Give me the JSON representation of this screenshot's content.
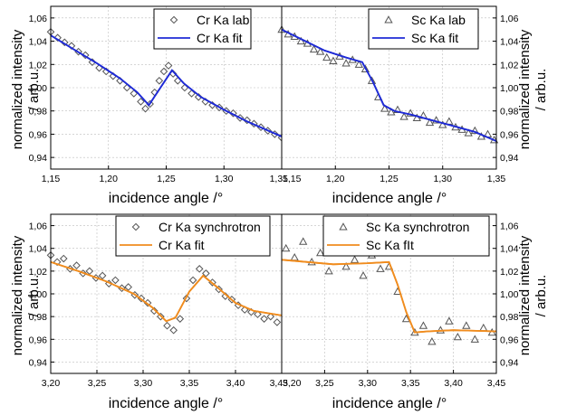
{
  "figure": {
    "ylabel_line1": "normalized intensity",
    "ylabel_line2": "/ arb.u."
  },
  "chart_data": [
    {
      "type": "scatter",
      "title": "",
      "xlabel": "incidence angle /°",
      "ylabel": "normalized intensity / arb.u.",
      "xlim": [
        1.15,
        1.35
      ],
      "ylim": [
        0.93,
        1.07
      ],
      "xticks": [
        "1,15",
        "1,20",
        "1,25",
        "1,30",
        "1,35"
      ],
      "yticks": [
        "0,94",
        "0,96",
        "0,98",
        "1,00",
        "1,02",
        "1,04",
        "1,06"
      ],
      "legend_position": "top-right",
      "grid": true,
      "series": [
        {
          "name": "Cr Ka lab",
          "kind": "markers",
          "marker": "diamond",
          "color": "#555555",
          "x": [
            1.15,
            1.156,
            1.162,
            1.168,
            1.174,
            1.18,
            1.186,
            1.192,
            1.198,
            1.204,
            1.21,
            1.216,
            1.222,
            1.228,
            1.232,
            1.236,
            1.24,
            1.244,
            1.248,
            1.252,
            1.256,
            1.26,
            1.266,
            1.272,
            1.278,
            1.284,
            1.29,
            1.296,
            1.302,
            1.308,
            1.314,
            1.32,
            1.326,
            1.332,
            1.338,
            1.344,
            1.35
          ],
          "y": [
            1.048,
            1.043,
            1.039,
            1.036,
            1.031,
            1.028,
            1.022,
            1.017,
            1.014,
            1.01,
            1.006,
            1.0,
            0.995,
            0.988,
            0.982,
            0.986,
            0.996,
            1.006,
            1.014,
            1.019,
            1.012,
            1.006,
            1.0,
            0.995,
            0.992,
            0.988,
            0.985,
            0.983,
            0.98,
            0.978,
            0.974,
            0.972,
            0.969,
            0.966,
            0.963,
            0.96,
            0.957
          ]
        },
        {
          "name": "Cr Ka fit",
          "kind": "line",
          "color": "#1f2bd6",
          "x": [
            1.15,
            1.17,
            1.19,
            1.21,
            1.225,
            1.235,
            1.245,
            1.255,
            1.265,
            1.28,
            1.3,
            1.32,
            1.35
          ],
          "y": [
            1.045,
            1.033,
            1.021,
            1.008,
            0.996,
            0.985,
            1.0,
            1.015,
            1.004,
            0.992,
            0.981,
            0.971,
            0.958
          ]
        }
      ]
    },
    {
      "type": "scatter",
      "title": "",
      "xlabel": "incidence angle /°",
      "ylabel": "normalized intensity / arb.u.",
      "xlim": [
        1.15,
        1.35
      ],
      "ylim": [
        0.93,
        1.07
      ],
      "xticks": [
        "1,15",
        "1,20",
        "1,25",
        "1,30",
        "1,35"
      ],
      "yticks": [
        "0,94",
        "0,96",
        "0,98",
        "1,00",
        "1,02",
        "1,04",
        "1,06"
      ],
      "legend_position": "top-right",
      "grid": true,
      "series": [
        {
          "name": "Sc Ka lab",
          "kind": "markers",
          "marker": "triangle",
          "color": "#555555",
          "x": [
            1.15,
            1.156,
            1.162,
            1.168,
            1.174,
            1.18,
            1.186,
            1.192,
            1.198,
            1.204,
            1.21,
            1.216,
            1.222,
            1.228,
            1.234,
            1.24,
            1.246,
            1.252,
            1.258,
            1.264,
            1.27,
            1.276,
            1.282,
            1.288,
            1.294,
            1.3,
            1.306,
            1.312,
            1.318,
            1.324,
            1.33,
            1.336,
            1.342,
            1.348
          ],
          "y": [
            1.05,
            1.046,
            1.044,
            1.04,
            1.038,
            1.033,
            1.031,
            1.026,
            1.023,
            1.027,
            1.021,
            1.024,
            1.02,
            1.016,
            1.006,
            0.992,
            0.982,
            0.979,
            0.981,
            0.975,
            0.978,
            0.974,
            0.976,
            0.97,
            0.972,
            0.968,
            0.971,
            0.966,
            0.964,
            0.961,
            0.963,
            0.958,
            0.96,
            0.955
          ]
        },
        {
          "name": "Sc Ka fit",
          "kind": "line",
          "color": "#1f2bd6",
          "x": [
            1.15,
            1.17,
            1.19,
            1.21,
            1.225,
            1.235,
            1.245,
            1.255,
            1.27,
            1.29,
            1.31,
            1.33,
            1.35
          ],
          "y": [
            1.05,
            1.041,
            1.032,
            1.026,
            1.022,
            1.005,
            0.985,
            0.98,
            0.977,
            0.972,
            0.967,
            0.962,
            0.954
          ]
        }
      ]
    },
    {
      "type": "scatter",
      "title": "",
      "xlabel": "incidence angle /°",
      "ylabel": "normalized intensity / arb.u.",
      "xlim": [
        3.2,
        3.45
      ],
      "ylim": [
        0.93,
        1.07
      ],
      "xticks": [
        "3,20",
        "3,25",
        "3,30",
        "3,35",
        "3,40",
        "3,45"
      ],
      "yticks": [
        "0,94",
        "0,96",
        "0,98",
        "1,00",
        "1,02",
        "1,04",
        "1,06"
      ],
      "legend_position": "top-right",
      "grid": true,
      "series": [
        {
          "name": "Cr Ka synchrotron",
          "kind": "markers",
          "marker": "diamond",
          "color": "#555555",
          "x": [
            3.2,
            3.207,
            3.214,
            3.221,
            3.228,
            3.235,
            3.242,
            3.249,
            3.256,
            3.263,
            3.27,
            3.277,
            3.284,
            3.291,
            3.298,
            3.305,
            3.312,
            3.319,
            3.326,
            3.333,
            3.34,
            3.347,
            3.354,
            3.361,
            3.368,
            3.375,
            3.382,
            3.389,
            3.396,
            3.403,
            3.41,
            3.417,
            3.424,
            3.431,
            3.438,
            3.445
          ],
          "y": [
            1.034,
            1.028,
            1.031,
            1.022,
            1.025,
            1.018,
            1.02,
            1.014,
            1.016,
            1.009,
            1.012,
            1.005,
            1.006,
            0.999,
            0.996,
            0.992,
            0.985,
            0.98,
            0.972,
            0.968,
            0.978,
            0.996,
            1.012,
            1.022,
            1.018,
            1.01,
            1.004,
            0.998,
            0.995,
            0.99,
            0.986,
            0.984,
            0.982,
            0.978,
            0.98,
            0.975
          ]
        },
        {
          "name": "Cr Ka fit",
          "kind": "line",
          "color": "#f08c1e",
          "x": [
            3.2,
            3.23,
            3.26,
            3.29,
            3.31,
            3.325,
            3.335,
            3.35,
            3.365,
            3.38,
            3.4,
            3.42,
            3.45
          ],
          "y": [
            1.028,
            1.02,
            1.011,
            1.0,
            0.988,
            0.976,
            0.979,
            1.002,
            1.016,
            1.006,
            0.992,
            0.985,
            0.981
          ]
        }
      ]
    },
    {
      "type": "scatter",
      "title": "",
      "xlabel": "incidence angle /°",
      "ylabel": "normalized intensity / arb.u.",
      "xlim": [
        3.2,
        3.45
      ],
      "ylim": [
        0.93,
        1.07
      ],
      "xticks": [
        "3,20",
        "3,25",
        "3,30",
        "3,35",
        "3,40",
        "3,45"
      ],
      "yticks": [
        "0,94",
        "0,96",
        "0,98",
        "1,00",
        "1,02",
        "1,04",
        "1,06"
      ],
      "legend_position": "top-right",
      "grid": true,
      "series": [
        {
          "name": "Sc Ka synchrotron",
          "kind": "markers",
          "marker": "triangle",
          "color": "#555555",
          "x": [
            3.205,
            3.215,
            3.225,
            3.235,
            3.245,
            3.255,
            3.265,
            3.275,
            3.285,
            3.295,
            3.305,
            3.315,
            3.325,
            3.335,
            3.345,
            3.355,
            3.365,
            3.375,
            3.385,
            3.395,
            3.405,
            3.415,
            3.425,
            3.435,
            3.445
          ],
          "y": [
            1.04,
            1.032,
            1.046,
            1.028,
            1.036,
            1.02,
            1.04,
            1.024,
            1.03,
            1.016,
            1.034,
            1.022,
            1.024,
            1.002,
            0.978,
            0.966,
            0.972,
            0.958,
            0.968,
            0.976,
            0.962,
            0.972,
            0.96,
            0.97,
            0.966
          ]
        },
        {
          "name": "Sc Ka fIt",
          "kind": "line",
          "color": "#f08c1e",
          "x": [
            3.2,
            3.23,
            3.26,
            3.3,
            3.325,
            3.335,
            3.345,
            3.355,
            3.37,
            3.4,
            3.45
          ],
          "y": [
            1.03,
            1.028,
            1.026,
            1.027,
            1.028,
            1.008,
            0.984,
            0.966,
            0.967,
            0.968,
            0.967
          ]
        }
      ]
    }
  ]
}
